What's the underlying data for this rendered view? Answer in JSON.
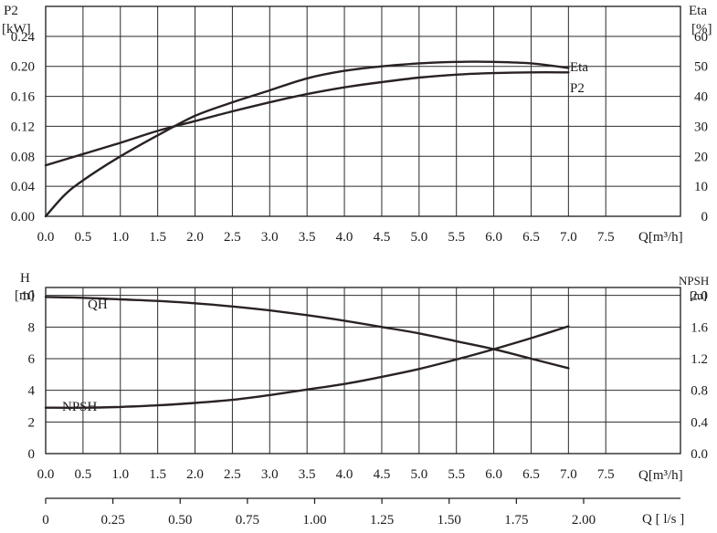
{
  "chart_data": [
    {
      "type": "line",
      "left_axis": {
        "label_line1": "P2",
        "label_line2": "[kW]",
        "range": [
          0,
          0.28
        ],
        "ticks": [
          "0.00",
          "0.04",
          "0.08",
          "0.12",
          "0.16",
          "0.20",
          "0.24"
        ],
        "tick_values": [
          0,
          0.04,
          0.08,
          0.12,
          0.16,
          0.2,
          0.24
        ]
      },
      "right_axis": {
        "label_line1": "Eta",
        "label_line2": "[%]",
        "range": [
          0,
          70
        ],
        "ticks": [
          "0",
          "10",
          "20",
          "30",
          "40",
          "50",
          "60"
        ],
        "tick_values": [
          0,
          10,
          20,
          30,
          40,
          50,
          60
        ]
      },
      "x_axis": {
        "label": "Q[m³/h]",
        "range": [
          0,
          8.5
        ],
        "ticks": [
          "0.0",
          "0.5",
          "1.0",
          "1.5",
          "2.0",
          "2.5",
          "3.0",
          "3.5",
          "4.0",
          "4.5",
          "5.0",
          "5.5",
          "6.0",
          "6.5",
          "7.0",
          "7.5"
        ],
        "tick_values": [
          0,
          0.5,
          1,
          1.5,
          2,
          2.5,
          3,
          3.5,
          4,
          4.5,
          5,
          5.5,
          6,
          6.5,
          7,
          7.5
        ]
      },
      "grid": true,
      "series": [
        {
          "name": "Eta",
          "axis": "right",
          "x": [
            0,
            0.25,
            0.5,
            1,
            1.5,
            2,
            2.5,
            3,
            3.5,
            4,
            4.5,
            5,
            5.5,
            6,
            6.5,
            7
          ],
          "y": [
            0,
            7,
            12,
            20,
            27,
            33.5,
            38,
            42,
            46,
            48.5,
            50,
            51,
            51.5,
            51.5,
            51,
            49.5
          ]
        },
        {
          "name": "P2",
          "axis": "left",
          "x": [
            0,
            0.5,
            1,
            1.5,
            2,
            2.5,
            3,
            3.5,
            4,
            4.5,
            5,
            5.5,
            6,
            6.5,
            7
          ],
          "y": [
            0.068,
            0.083,
            0.098,
            0.114,
            0.127,
            0.14,
            0.152,
            0.163,
            0.172,
            0.179,
            0.185,
            0.189,
            0.191,
            0.192,
            0.192
          ]
        }
      ]
    },
    {
      "type": "line",
      "left_axis": {
        "label_line1": "H",
        "label_line2": "[m]",
        "range": [
          0,
          10.5
        ],
        "ticks": [
          "0",
          "2",
          "4",
          "6",
          "8",
          "10"
        ],
        "tick_values": [
          0,
          2,
          4,
          6,
          8,
          10
        ]
      },
      "right_axis": {
        "label_line1": "NPSH",
        "label_line2": "[m]",
        "range": [
          0,
          2.1
        ],
        "ticks": [
          "0.0",
          "0.4",
          "0.8",
          "1.2",
          "1.6",
          "2.0"
        ],
        "tick_values": [
          0,
          0.4,
          0.8,
          1.2,
          1.6,
          2.0
        ]
      },
      "x_axis": {
        "label": "Q[m³/h]",
        "range": [
          0,
          8.5
        ],
        "ticks": [
          "0.0",
          "0.5",
          "1.0",
          "1.5",
          "2.0",
          "2.5",
          "3.0",
          "3.5",
          "4.0",
          "4.5",
          "5.0",
          "5.5",
          "6.0",
          "6.5",
          "7.0",
          "7.5"
        ],
        "tick_values": [
          0,
          0.5,
          1,
          1.5,
          2,
          2.5,
          3,
          3.5,
          4,
          4.5,
          5,
          5.5,
          6,
          6.5,
          7,
          7.5
        ]
      },
      "grid": true,
      "series": [
        {
          "name": "QH",
          "axis": "left",
          "x": [
            0,
            0.5,
            1,
            1.5,
            2,
            2.5,
            3,
            3.5,
            4,
            4.5,
            5,
            5.5,
            6,
            6.5,
            7
          ],
          "y": [
            9.9,
            9.85,
            9.75,
            9.65,
            9.5,
            9.3,
            9.05,
            8.75,
            8.4,
            8.0,
            7.6,
            7.1,
            6.6,
            6.0,
            5.4
          ]
        },
        {
          "name": "NPSH",
          "axis": "right",
          "x": [
            0,
            0.5,
            1,
            1.5,
            2,
            2.5,
            3,
            3.5,
            4,
            4.5,
            5,
            5.5,
            6,
            6.5,
            7
          ],
          "y": [
            0.58,
            0.58,
            0.59,
            0.61,
            0.64,
            0.68,
            0.74,
            0.81,
            0.88,
            0.97,
            1.07,
            1.19,
            1.32,
            1.46,
            1.61
          ]
        }
      ]
    },
    {
      "type": "axis",
      "x_axis": {
        "label": "Q [ l/s ]",
        "range": [
          0,
          2.36
        ],
        "ticks": [
          "0",
          "0.25",
          "0.50",
          "0.75",
          "1.00",
          "1.25",
          "1.50",
          "1.75",
          "2.00"
        ],
        "tick_values": [
          0,
          0.25,
          0.5,
          0.75,
          1,
          1.25,
          1.5,
          1.75,
          2
        ]
      }
    }
  ]
}
